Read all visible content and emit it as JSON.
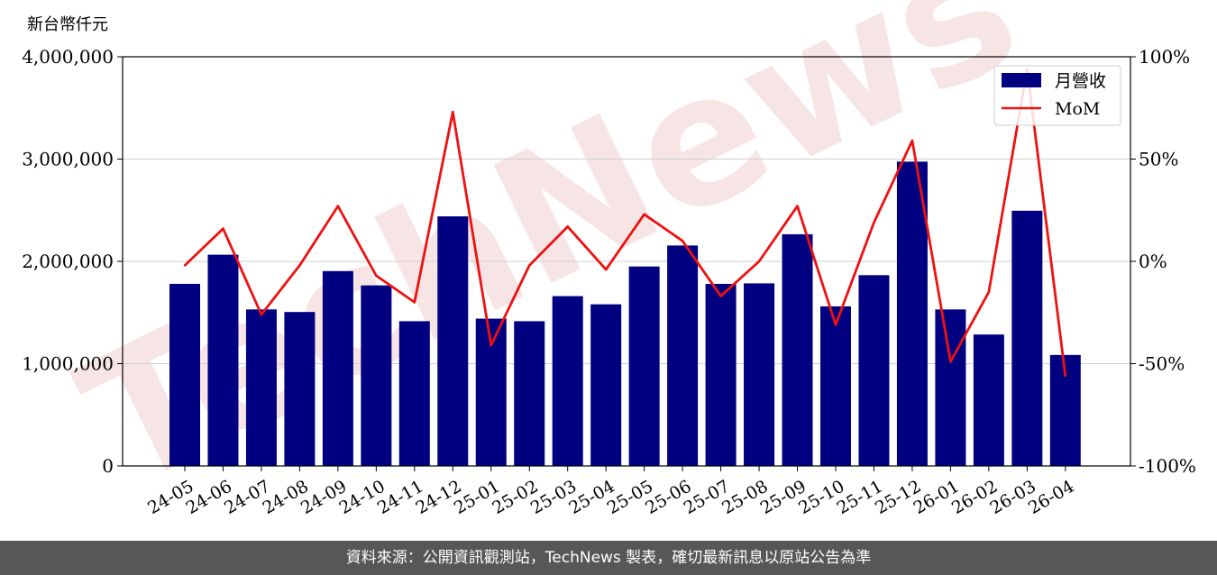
{
  "source_note": "資料來源：公開資訊觀測站，TechNews 製表，確切最新訊息以原站公告為準",
  "watermark": "TechNews",
  "colors": {
    "bar": "#000080",
    "line": "#ee1111",
    "watermark": "#f2d4d4",
    "footer": "#575757"
  },
  "chart_data": {
    "type": "bar",
    "categories": [
      "24-05",
      "24-06",
      "24-07",
      "24-08",
      "24-09",
      "24-10",
      "24-11",
      "24-12",
      "25-01",
      "25-02",
      "25-03",
      "25-04",
      "25-05",
      "25-06",
      "25-07",
      "25-08",
      "25-09",
      "25-10",
      "25-11",
      "25-12",
      "26-01",
      "26-02",
      "26-03",
      "26-04"
    ],
    "series": [
      {
        "name": "月營收",
        "type": "bar",
        "axis": "left",
        "values": [
          1780000,
          2065000,
          1530000,
          1505000,
          1905000,
          1765000,
          1415000,
          2440000,
          1440000,
          1415000,
          1660000,
          1580000,
          1950000,
          2155000,
          1780000,
          1785000,
          2265000,
          1560000,
          1865000,
          2975000,
          1530000,
          1285000,
          2495000,
          1085000
        ]
      },
      {
        "name": "MoM",
        "type": "line",
        "axis": "right",
        "values": [
          -2,
          16,
          -26,
          -2,
          27,
          -7,
          -20,
          73,
          -41,
          -2,
          17,
          -4,
          23,
          10,
          -17,
          0,
          27,
          -31,
          19,
          59,
          -49,
          -15,
          94,
          -56
        ]
      }
    ],
    "ylabel": "新台幣仟元",
    "ylim": [
      0,
      4000000
    ],
    "yticks": [
      0,
      1000000,
      2000000,
      3000000,
      4000000
    ],
    "ytick_labels": [
      "0",
      "1,000,000",
      "2,000,000",
      "3,000,000",
      "4,000,000"
    ],
    "y2lim": [
      -100,
      100
    ],
    "y2ticks": [
      -100,
      -50,
      0,
      50,
      100
    ],
    "y2tick_labels": [
      "-100%",
      "-50%",
      "0%",
      "50%",
      "100%"
    ],
    "grid": "horizontal",
    "legend": "top-right"
  }
}
